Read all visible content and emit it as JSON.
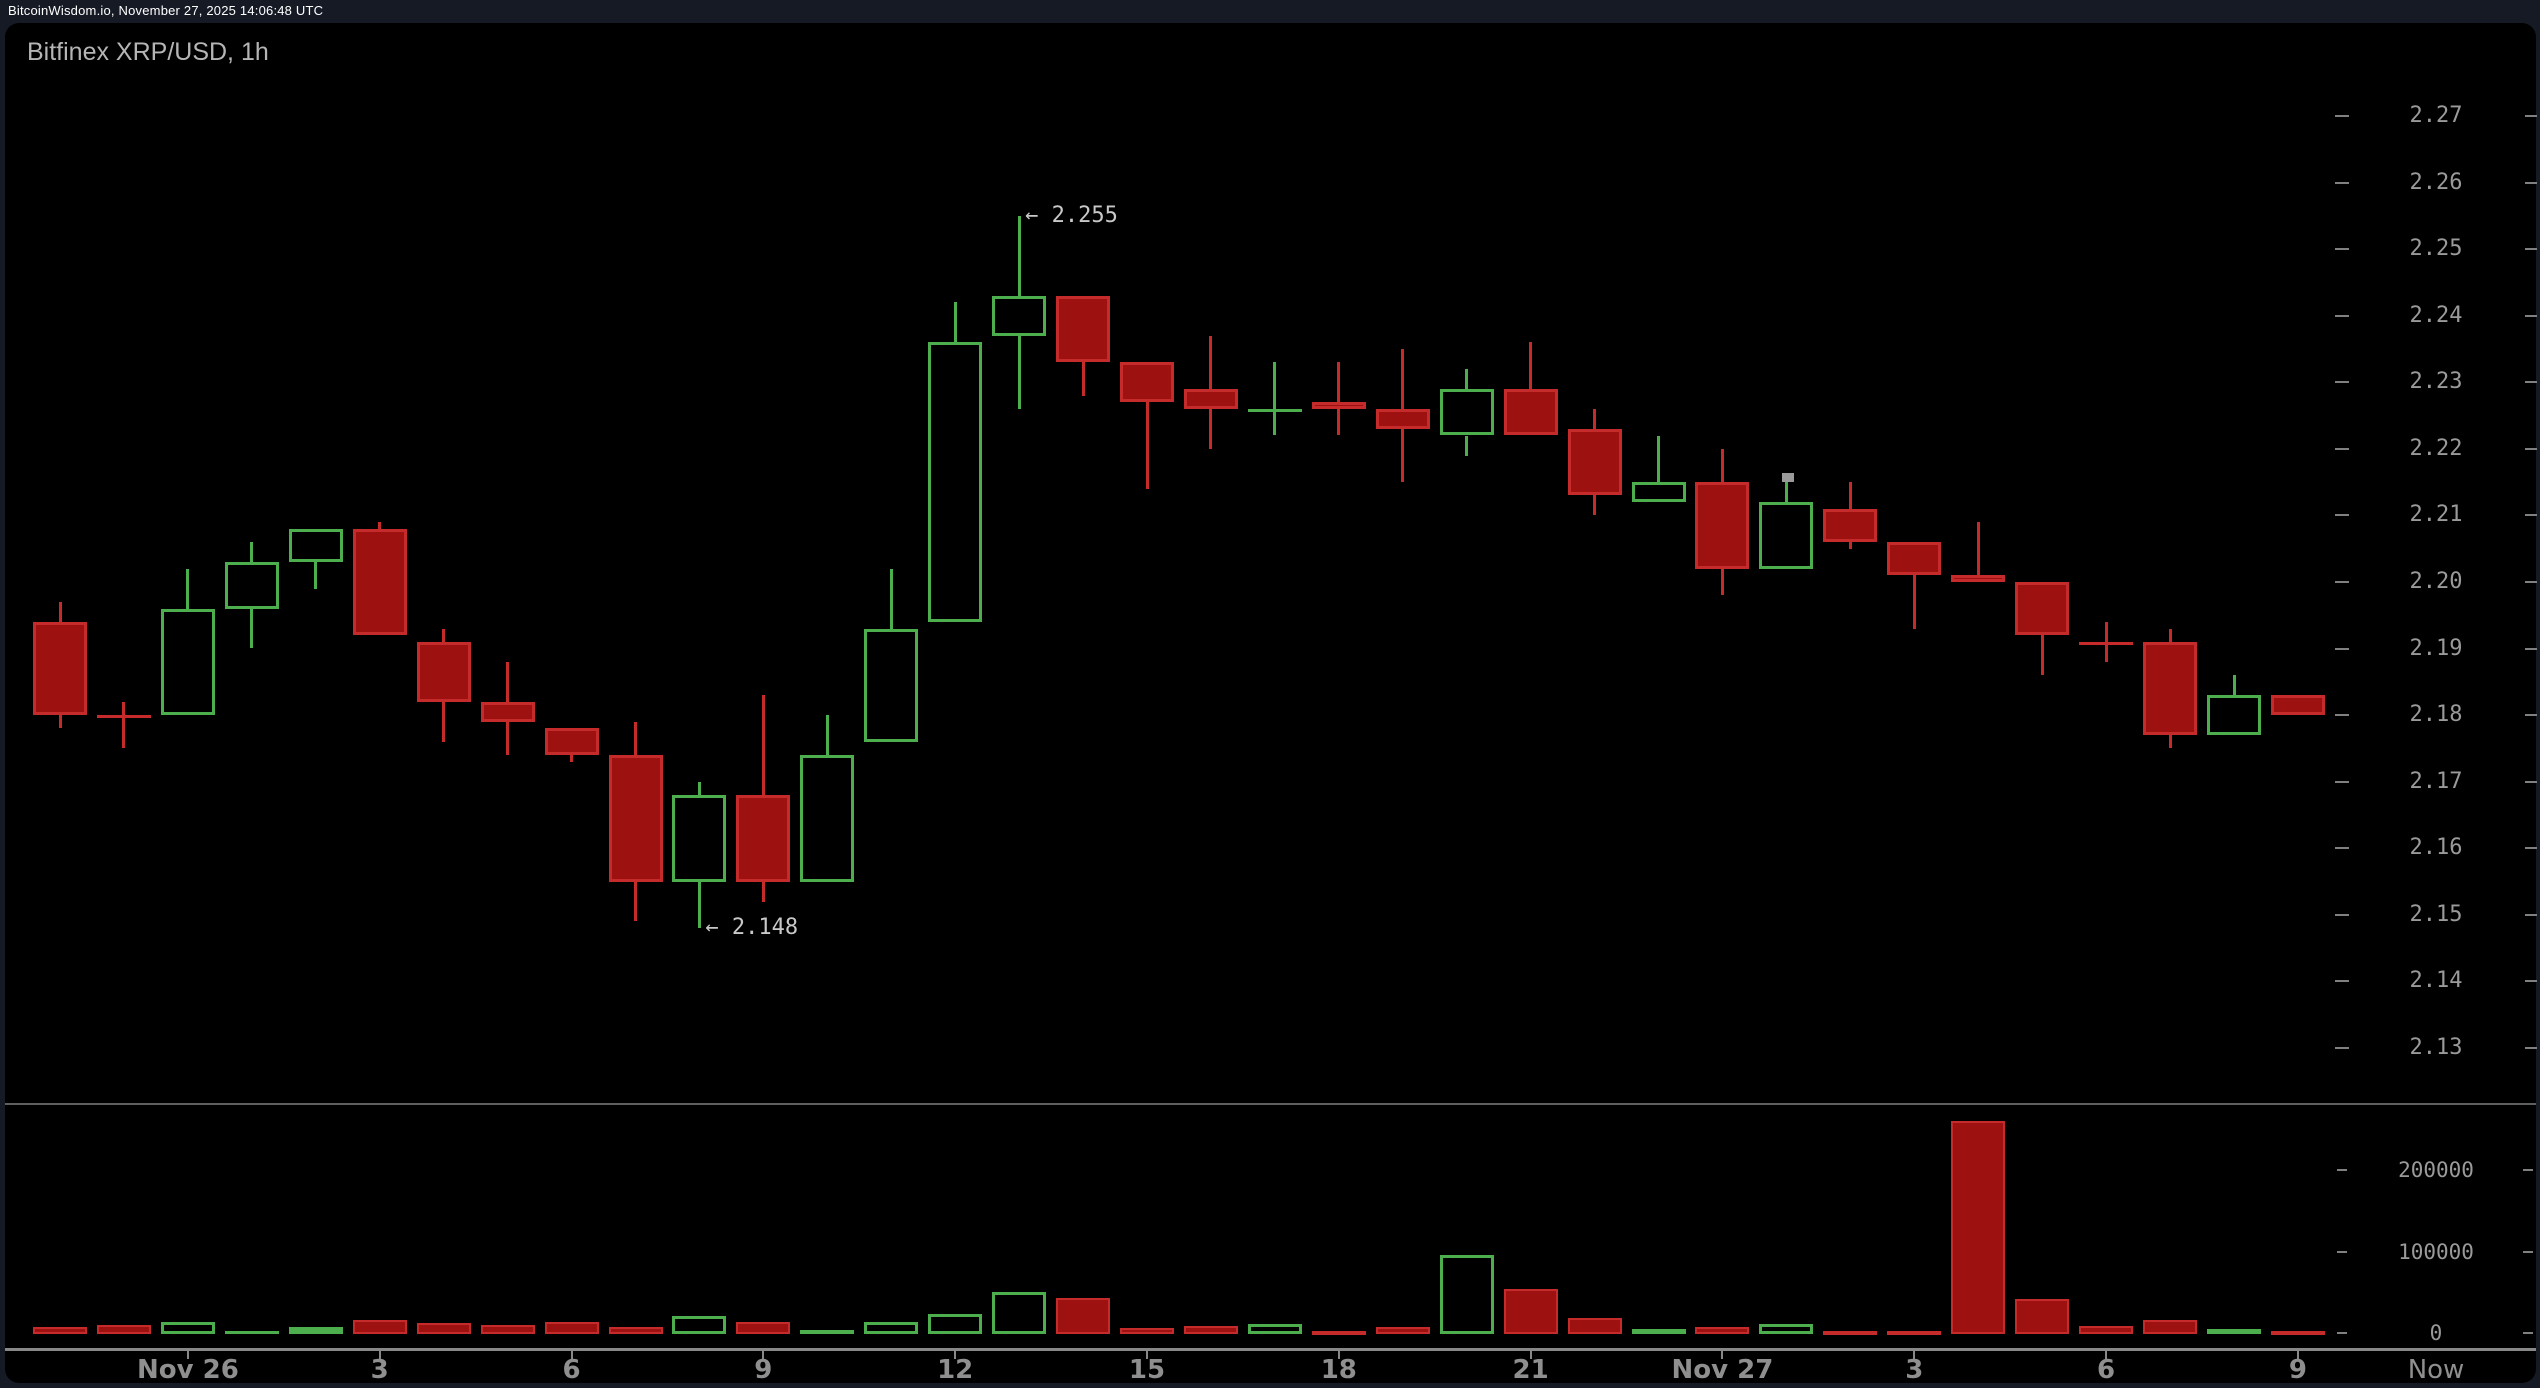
{
  "topbar": {
    "status_text": "BitcoinWisdom.io, November 27, 2025 14:06:48 UTC"
  },
  "chart": {
    "title": "Bitfinex XRP/USD, 1h"
  },
  "colors": {
    "page_bg": "#151a25",
    "panel_bg": "#000000",
    "up_green": "#4cae4c",
    "down_fill": "#9e1111",
    "down_border": "#c62b2b",
    "axis_gray": "#888888",
    "label_gray": "#9a9a9a",
    "time_label_gray": "#8f8f8f",
    "annotation_gray": "#c8c8c8",
    "topbar_text": "#ffffff",
    "title_gray": "#b5b5b5"
  },
  "chart_data": {
    "type": "candlestick_with_volume",
    "exchange_pair_interval": "Bitfinex XRP/USD, 1h",
    "price_axis": {
      "ticks": [
        2.27,
        2.26,
        2.25,
        2.24,
        2.23,
        2.22,
        2.21,
        2.2,
        2.19,
        2.18,
        2.17,
        2.16,
        2.15,
        2.14,
        2.13
      ],
      "side": "right",
      "grid": false
    },
    "volume_axis": {
      "ticks": [
        200000,
        100000,
        0
      ],
      "side": "right",
      "grid": false
    },
    "time_axis": {
      "labels": [
        {
          "text": "Nov 26",
          "candle_index": 2
        },
        {
          "text": "3",
          "candle_index": 5
        },
        {
          "text": "6",
          "candle_index": 8
        },
        {
          "text": "9",
          "candle_index": 11
        },
        {
          "text": "12",
          "candle_index": 14
        },
        {
          "text": "15",
          "candle_index": 17
        },
        {
          "text": "18",
          "candle_index": 20
        },
        {
          "text": "21",
          "candle_index": 23
        },
        {
          "text": "Nov 27",
          "candle_index": 26
        },
        {
          "text": "3",
          "candle_index": 29
        },
        {
          "text": "6",
          "candle_index": 32
        },
        {
          "text": "9",
          "candle_index": 35
        }
      ],
      "now_label": {
        "text": "Now"
      }
    },
    "annotations": [
      {
        "text": "← 2.255",
        "price": 2.255,
        "candle_index": 15,
        "side": "right-of-high"
      },
      {
        "text": "← 2.148",
        "price": 2.148,
        "candle_index": 10,
        "side": "right-of-low"
      }
    ],
    "candles": [
      {
        "time": "Nov 25 22:00",
        "open": 2.194,
        "high": 2.197,
        "low": 2.178,
        "close": 2.18,
        "dir": "down",
        "volume": 8500
      },
      {
        "time": "Nov 25 23:00",
        "open": 2.18,
        "high": 2.182,
        "low": 2.175,
        "close": 2.18,
        "dir": "down",
        "volume": 11000
      },
      {
        "time": "Nov 26 00:00",
        "open": 2.18,
        "high": 2.202,
        "low": 2.18,
        "close": 2.196,
        "dir": "up",
        "volume": 14500
      },
      {
        "time": "Nov 26 01:00",
        "open": 2.196,
        "high": 2.206,
        "low": 2.19,
        "close": 2.203,
        "dir": "up",
        "volume": 3000
      },
      {
        "time": "Nov 26 02:00",
        "open": 2.203,
        "high": 2.208,
        "low": 2.199,
        "close": 2.208,
        "dir": "up",
        "volume": 8500
      },
      {
        "time": "Nov 26 03:00",
        "open": 2.208,
        "high": 2.209,
        "low": 2.192,
        "close": 2.192,
        "dir": "down",
        "volume": 17000
      },
      {
        "time": "Nov 26 04:00",
        "open": 2.191,
        "high": 2.193,
        "low": 2.176,
        "close": 2.182,
        "dir": "down",
        "volume": 13500
      },
      {
        "time": "Nov 26 05:00",
        "open": 2.182,
        "high": 2.188,
        "low": 2.174,
        "close": 2.179,
        "dir": "down",
        "volume": 11000
      },
      {
        "time": "Nov 26 06:00",
        "open": 2.178,
        "high": 2.178,
        "low": 2.173,
        "close": 2.174,
        "dir": "down",
        "volume": 14500
      },
      {
        "time": "Nov 26 07:00",
        "open": 2.174,
        "high": 2.179,
        "low": 2.149,
        "close": 2.155,
        "dir": "down",
        "volume": 8500
      },
      {
        "time": "Nov 26 08:00",
        "open": 2.155,
        "high": 2.17,
        "low": 2.148,
        "close": 2.168,
        "dir": "up",
        "volume": 22000
      },
      {
        "time": "Nov 26 09:00",
        "open": 2.168,
        "high": 2.183,
        "low": 2.152,
        "close": 2.155,
        "dir": "down",
        "volume": 14500
      },
      {
        "time": "Nov 26 10:00",
        "open": 2.155,
        "high": 2.18,
        "low": 2.155,
        "close": 2.174,
        "dir": "up",
        "volume": 5000
      },
      {
        "time": "Nov 26 11:00",
        "open": 2.176,
        "high": 2.202,
        "low": 2.176,
        "close": 2.193,
        "dir": "up",
        "volume": 14500
      },
      {
        "time": "Nov 26 12:00",
        "open": 2.194,
        "high": 2.242,
        "low": 2.194,
        "close": 2.236,
        "dir": "up",
        "volume": 24500
      },
      {
        "time": "Nov 26 13:00",
        "open": 2.237,
        "high": 2.255,
        "low": 2.226,
        "close": 2.243,
        "dir": "up",
        "volume": 51500
      },
      {
        "time": "Nov 26 14:00",
        "open": 2.243,
        "high": 2.243,
        "low": 2.228,
        "close": 2.233,
        "dir": "down",
        "volume": 44000
      },
      {
        "time": "Nov 26 15:00",
        "open": 2.233,
        "high": 2.233,
        "low": 2.214,
        "close": 2.227,
        "dir": "down",
        "volume": 7500
      },
      {
        "time": "Nov 26 16:00",
        "open": 2.229,
        "high": 2.237,
        "low": 2.22,
        "close": 2.226,
        "dir": "down",
        "volume": 10000
      },
      {
        "time": "Nov 26 17:00",
        "open": 2.226,
        "high": 2.233,
        "low": 2.222,
        "close": 2.226,
        "dir": "up",
        "volume": 12500
      },
      {
        "time": "Nov 26 18:00",
        "open": 2.227,
        "high": 2.233,
        "low": 2.222,
        "close": 2.226,
        "dir": "down",
        "volume": 3500
      },
      {
        "time": "Nov 26 19:00",
        "open": 2.226,
        "high": 2.235,
        "low": 2.215,
        "close": 2.223,
        "dir": "down",
        "volume": 8500
      },
      {
        "time": "Nov 26 20:00",
        "open": 2.222,
        "high": 2.232,
        "low": 2.219,
        "close": 2.229,
        "dir": "up",
        "volume": 97000
      },
      {
        "time": "Nov 26 21:00",
        "open": 2.229,
        "high": 2.236,
        "low": 2.222,
        "close": 2.222,
        "dir": "down",
        "volume": 55000
      },
      {
        "time": "Nov 26 22:00",
        "open": 2.223,
        "high": 2.226,
        "low": 2.21,
        "close": 2.213,
        "dir": "down",
        "volume": 19500
      },
      {
        "time": "Nov 26 23:00",
        "open": 2.212,
        "high": 2.222,
        "low": 2.212,
        "close": 2.215,
        "dir": "up",
        "volume": 6000
      },
      {
        "time": "Nov 27 00:00",
        "open": 2.215,
        "high": 2.22,
        "low": 2.198,
        "close": 2.202,
        "dir": "down",
        "volume": 8500
      },
      {
        "time": "Nov 27 01:00",
        "open": 2.202,
        "high": 2.216,
        "low": 2.202,
        "close": 2.212,
        "dir": "up",
        "volume": 12500
      },
      {
        "time": "Nov 27 02:00",
        "open": 2.211,
        "high": 2.215,
        "low": 2.205,
        "close": 2.206,
        "dir": "down",
        "volume": 2500
      },
      {
        "time": "Nov 27 03:00",
        "open": 2.206,
        "high": 2.206,
        "low": 2.193,
        "close": 2.201,
        "dir": "down",
        "volume": 3000
      },
      {
        "time": "Nov 27 04:00",
        "open": 2.201,
        "high": 2.209,
        "low": 2.2,
        "close": 2.2,
        "dir": "down",
        "volume": 261000
      },
      {
        "time": "Nov 27 05:00",
        "open": 2.2,
        "high": 2.2,
        "low": 2.186,
        "close": 2.192,
        "dir": "down",
        "volume": 43000
      },
      {
        "time": "Nov 27 06:00",
        "open": 2.191,
        "high": 2.194,
        "low": 2.188,
        "close": 2.191,
        "dir": "down",
        "volume": 10000
      },
      {
        "time": "Nov 27 07:00",
        "open": 2.191,
        "high": 2.193,
        "low": 2.175,
        "close": 2.177,
        "dir": "down",
        "volume": 17000
      },
      {
        "time": "Nov 27 08:00",
        "open": 2.177,
        "high": 2.186,
        "low": 2.177,
        "close": 2.183,
        "dir": "up",
        "volume": 6000
      },
      {
        "time": "Nov 27 09:00",
        "open": 2.183,
        "high": 2.183,
        "low": 2.18,
        "close": 2.18,
        "dir": "down",
        "volume": 1000
      }
    ]
  }
}
